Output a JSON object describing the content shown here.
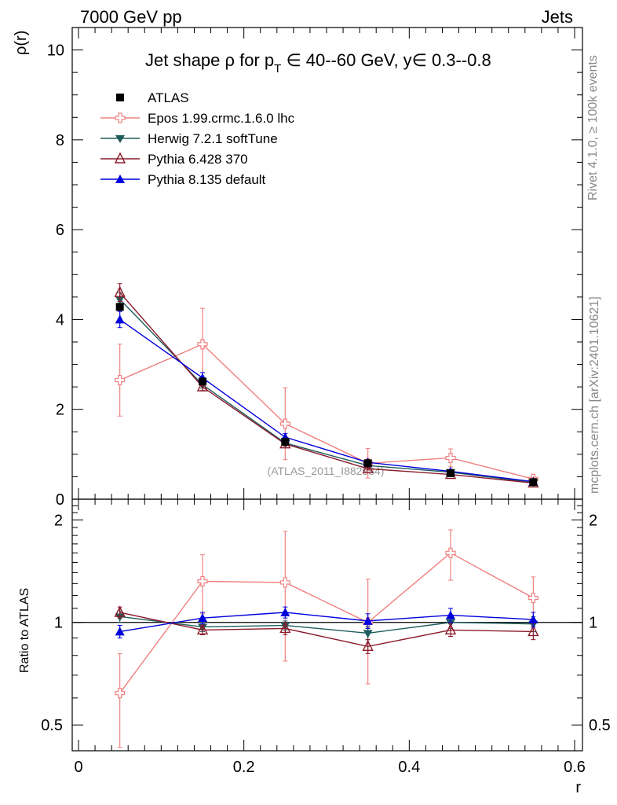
{
  "header": {
    "left": "7000 GeV pp",
    "right": "Jets"
  },
  "side_labels": {
    "rivet": "Rivet 4.1.0, ≥ 100k events",
    "mcplots": "mcplots.cern.ch [arXiv:2401.10621]"
  },
  "chart_data": {
    "type": "line",
    "title": "Jet shape ρ for p_T ∈ 40--60 GeV, y∈ 0.3--0.8",
    "title_parts": {
      "a": "Jet shape ρ for p",
      "sub": "T",
      "b": " ∈ 40--60 GeV, y∈ 0.3--0.8"
    },
    "watermark": "(ATLAS_2011_I882984)",
    "xlabel": "r",
    "ylabel_main": "ρ(r)",
    "ylabel_ratio": "Ratio to ATLAS",
    "xlim": [
      0,
      0.6
    ],
    "ylim_main": [
      0,
      10.5
    ],
    "ylim_ratio": [
      0.42,
      2.3
    ],
    "x_ticks": [
      0,
      0.2,
      0.4,
      0.6
    ],
    "x_tick_labels": [
      "0",
      "0.2",
      "0.4",
      "0.6"
    ],
    "y_ticks_main": [
      0,
      2,
      4,
      6,
      8,
      10
    ],
    "y_tick_labels_main": [
      "0",
      "2",
      "4",
      "6",
      "8",
      "10"
    ],
    "y_ticks_ratio": [
      0.5,
      1,
      2
    ],
    "y_tick_labels_ratio": [
      "0.5",
      "1",
      "2"
    ],
    "x": [
      0.05,
      0.15,
      0.25,
      0.35,
      0.45,
      0.55
    ],
    "series": [
      {
        "name": "ATLAS",
        "color": "#000000",
        "marker": "square",
        "values": [
          4.28,
          2.62,
          1.28,
          0.8,
          0.58,
          0.38
        ],
        "errors": [
          0.08,
          0.06,
          0.05,
          0.03,
          0.03,
          0.02
        ],
        "ratio": [
          1,
          1,
          1,
          1,
          1,
          1
        ],
        "ratio_err": [
          0,
          0,
          0,
          0,
          0,
          0
        ]
      },
      {
        "name": "Epos 1.99.crmc.1.6.0 lhc",
        "color": "#f08080",
        "marker": "open-cross",
        "values": [
          2.65,
          3.45,
          1.68,
          0.8,
          0.92,
          0.45
        ],
        "errors": [
          0.8,
          0.8,
          0.8,
          0.33,
          0.2,
          0.07
        ],
        "ratio": [
          0.62,
          1.32,
          1.31,
          1.0,
          1.6,
          1.18
        ],
        "ratio_err": [
          0.19,
          0.26,
          0.54,
          0.34,
          0.27,
          0.18
        ]
      },
      {
        "name": "Herwig 7.2.1 softTune",
        "color": "#1f5c5c",
        "marker": "down-triangle",
        "values": [
          4.45,
          2.55,
          1.25,
          0.75,
          0.6,
          0.37
        ],
        "errors": [
          0.15,
          0.08,
          0.05,
          0.03,
          0.03,
          0.02
        ],
        "ratio": [
          1.04,
          0.97,
          0.98,
          0.93,
          1.0,
          0.99
        ],
        "ratio_err": [
          0.04,
          0.03,
          0.03,
          0.04,
          0.04,
          0.05
        ]
      },
      {
        "name": "Pythia 6.428 370",
        "color": "#8b1a2a",
        "marker": "open-triangle",
        "values": [
          4.6,
          2.5,
          1.23,
          0.68,
          0.55,
          0.36
        ],
        "errors": [
          0.2,
          0.08,
          0.05,
          0.03,
          0.03,
          0.02
        ],
        "ratio": [
          1.07,
          0.95,
          0.96,
          0.85,
          0.95,
          0.94
        ],
        "ratio_err": [
          0.04,
          0.03,
          0.04,
          0.04,
          0.04,
          0.05
        ]
      },
      {
        "name": "Pythia 8.135 default",
        "color": "#0000dd",
        "marker": "up-triangle",
        "values": [
          4.0,
          2.7,
          1.38,
          0.82,
          0.62,
          0.39
        ],
        "errors": [
          0.18,
          0.12,
          0.08,
          0.04,
          0.03,
          0.03
        ],
        "ratio": [
          0.94,
          1.03,
          1.07,
          1.01,
          1.05,
          1.02
        ],
        "ratio_err": [
          0.04,
          0.04,
          0.04,
          0.05,
          0.05,
          0.05
        ]
      }
    ]
  }
}
